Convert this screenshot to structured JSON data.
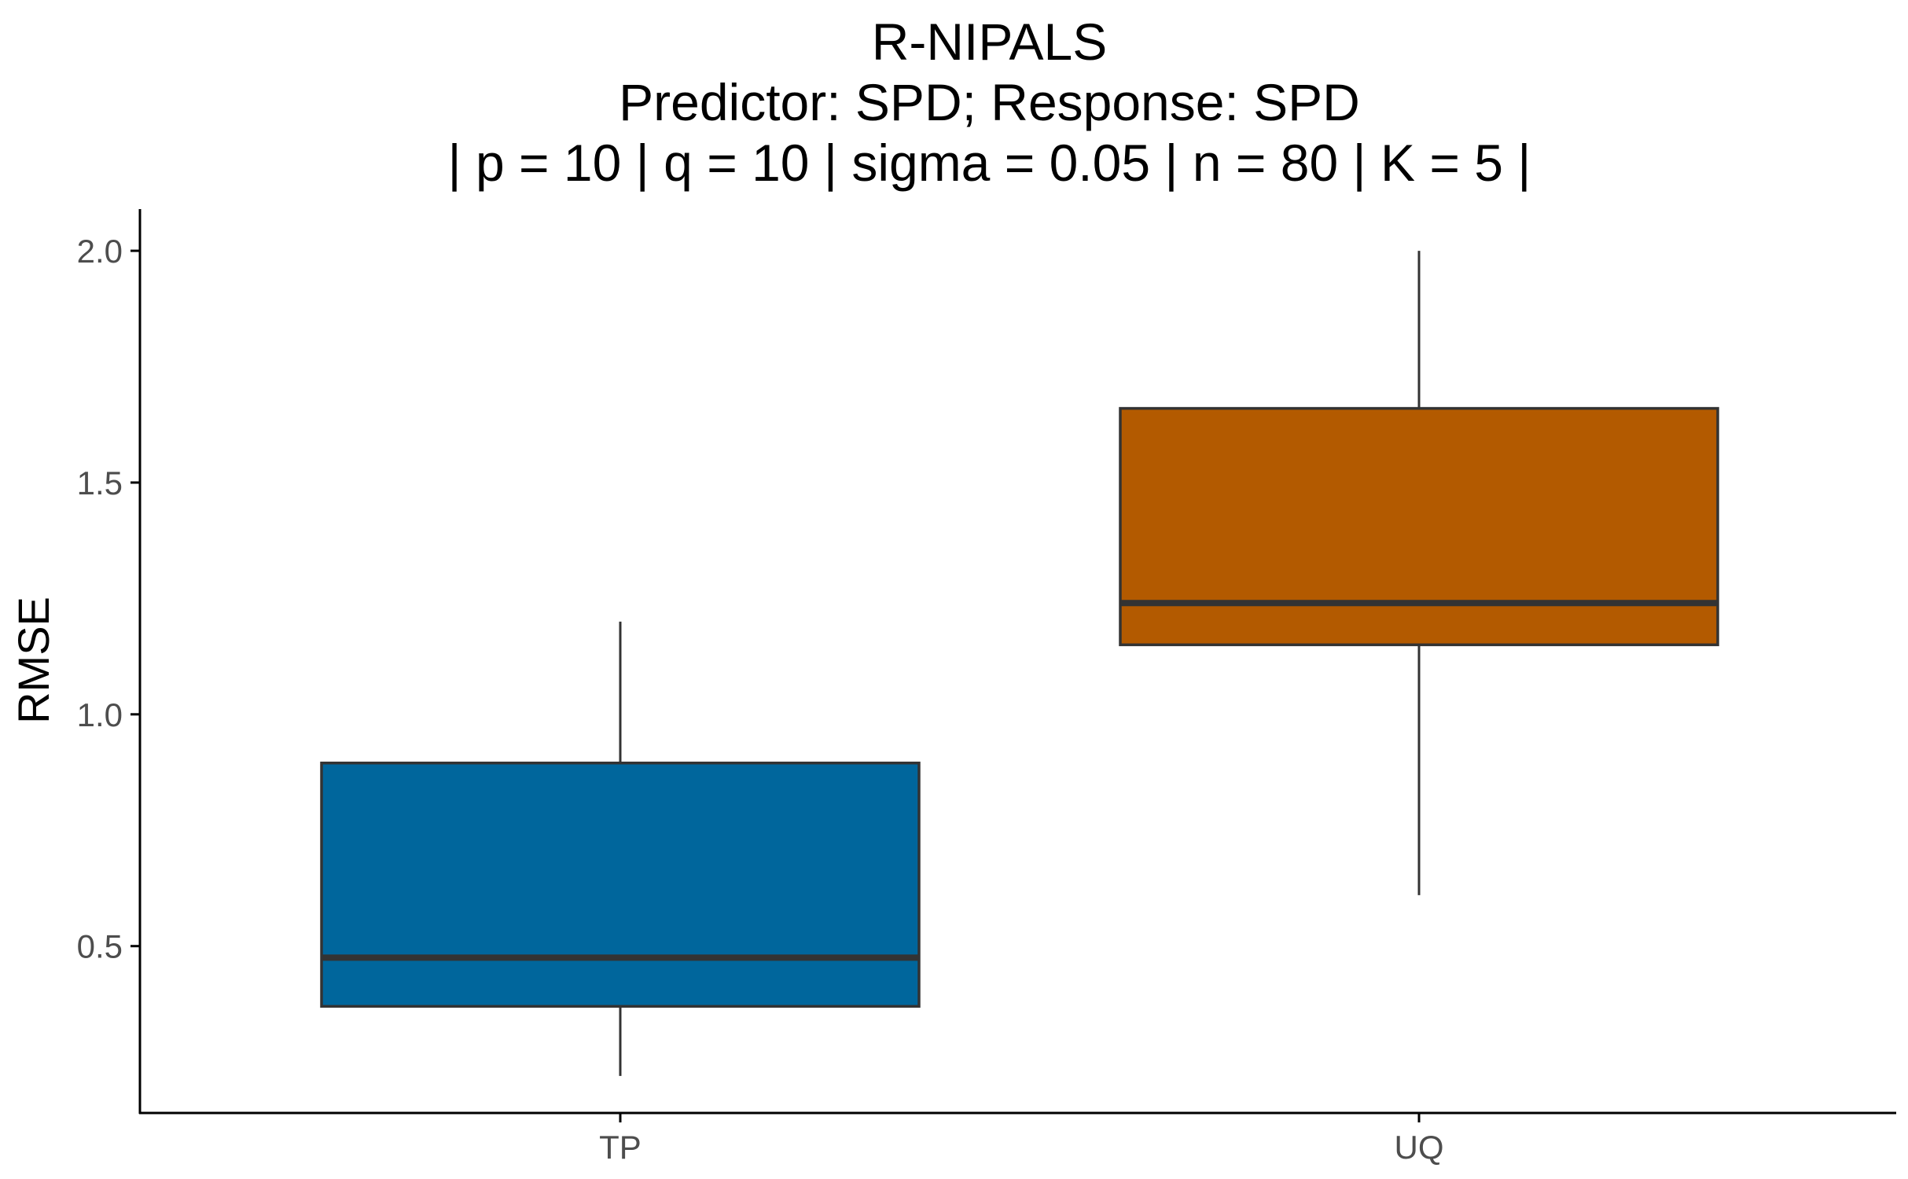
{
  "chart_data": {
    "type": "boxplot",
    "title": "R-NIPALS",
    "subtitle_lines": [
      "Predictor: SPD; Response: SPD",
      "| p = 10 | q = 10 | sigma = 0.05 | n = 80 | K = 5 |"
    ],
    "xlabel": "",
    "ylabel": "RMSE",
    "ylim": [
      0.14,
      2.09
    ],
    "yticks": [
      0.5,
      1.0,
      1.5,
      2.0
    ],
    "ytick_labels": [
      "0.5",
      "1.0",
      "1.5",
      "2.0"
    ],
    "categories": [
      "TP",
      "UQ"
    ],
    "boxes": [
      {
        "category": "TP",
        "whisker_low": 0.22,
        "q1": 0.37,
        "median": 0.475,
        "q3": 0.895,
        "whisker_high": 1.2,
        "color": "#00669C"
      },
      {
        "category": "UQ",
        "whisker_low": 0.61,
        "q1": 1.15,
        "median": 1.24,
        "q3": 1.66,
        "whisker_high": 2.0,
        "color": "#B35A00"
      }
    ],
    "grid": false,
    "legend": "none"
  }
}
